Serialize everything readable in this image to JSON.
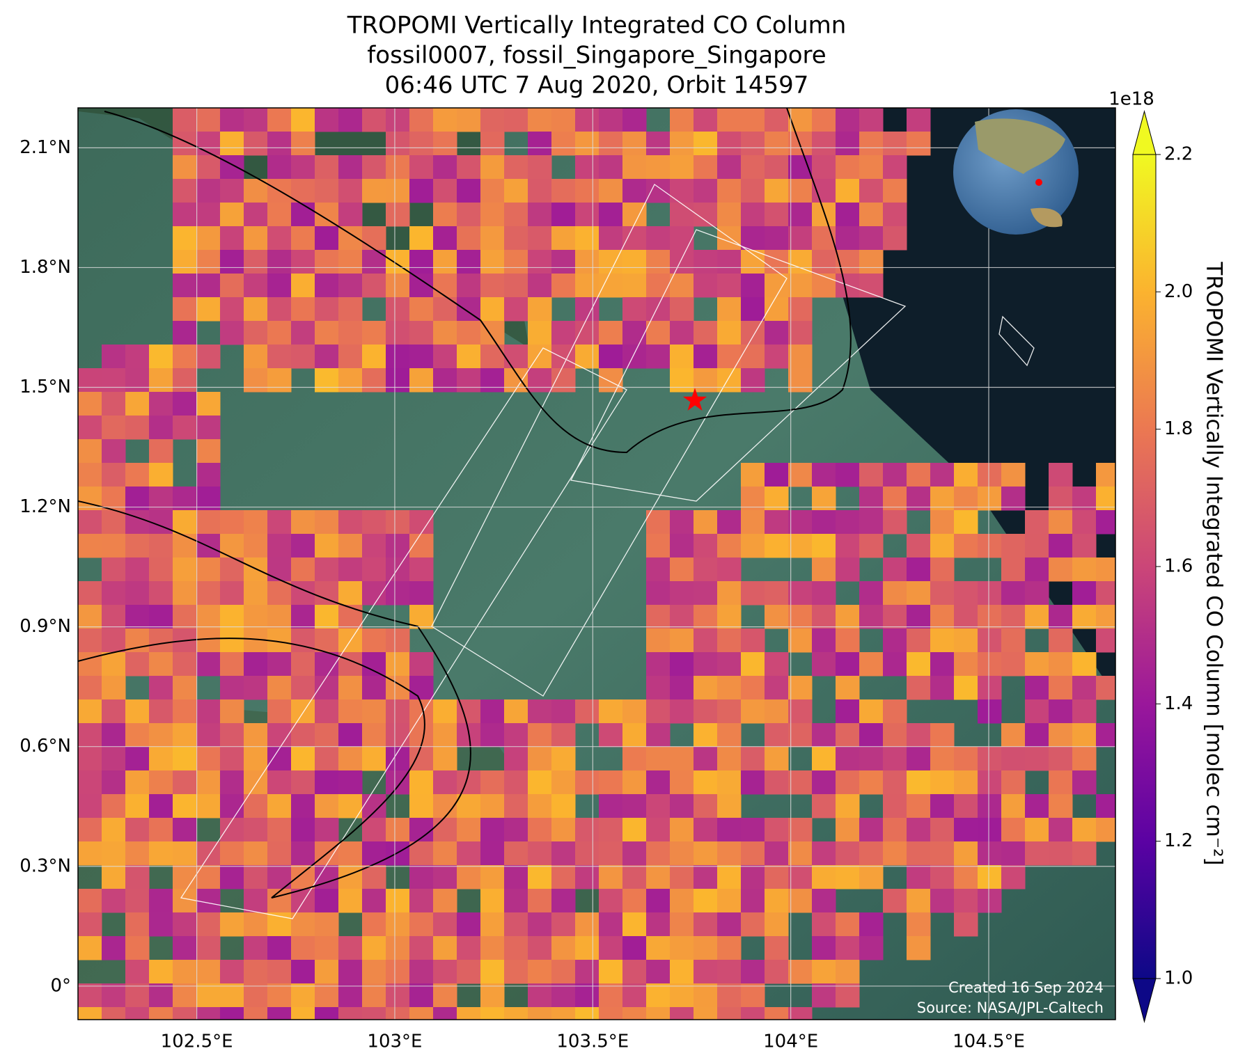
{
  "chart_data": {
    "type": "map",
    "title": [
      "TROPOMI Vertically Integrated CO Column",
      "fossil0007, fossil_Singapore_Singapore",
      "06:46 UTC 7 Aug 2020, Orbit 14597"
    ],
    "xlim": [
      102.2,
      104.82
    ],
    "ylim": [
      -0.084,
      2.2
    ],
    "xticks": [
      {
        "value": 102.5,
        "label": "102.5°E"
      },
      {
        "value": 103,
        "label": "103°E"
      },
      {
        "value": 103.5,
        "label": "103.5°E"
      },
      {
        "value": 104,
        "label": "104°E"
      },
      {
        "value": 104.5,
        "label": "104.5°E"
      }
    ],
    "yticks": [
      {
        "value": 0,
        "label": "0°"
      },
      {
        "value": 0.3,
        "label": "0.3°N"
      },
      {
        "value": 0.6,
        "label": "0.6°N"
      },
      {
        "value": 0.9,
        "label": "0.9°N"
      },
      {
        "value": 1.2,
        "label": "1.2°N"
      },
      {
        "value": 1.5,
        "label": "1.5°N"
      },
      {
        "value": 1.8,
        "label": "1.8°N"
      },
      {
        "value": 2.1,
        "label": "2.1°N"
      }
    ],
    "grid": true,
    "colorbar": {
      "label": "TROPOMI Vertically Integrated CO Column [molec cm⁻²]",
      "offset_label": "1e18",
      "lim": [
        1.0,
        2.2
      ],
      "ticks": [
        {
          "value": 1.0,
          "label": "1.0"
        },
        1.2,
        1.4,
        1.6,
        1.8,
        {
          "value": 2.0,
          "label": "2.0"
        },
        2.2
      ],
      "colormap": "plasma"
    },
    "site": {
      "lon": 103.758,
      "lat": 1.467,
      "color": "red"
    },
    "credits": [
      "Created 16 Sep 2024",
      "Source: NASA/JPL-Caltech"
    ]
  }
}
